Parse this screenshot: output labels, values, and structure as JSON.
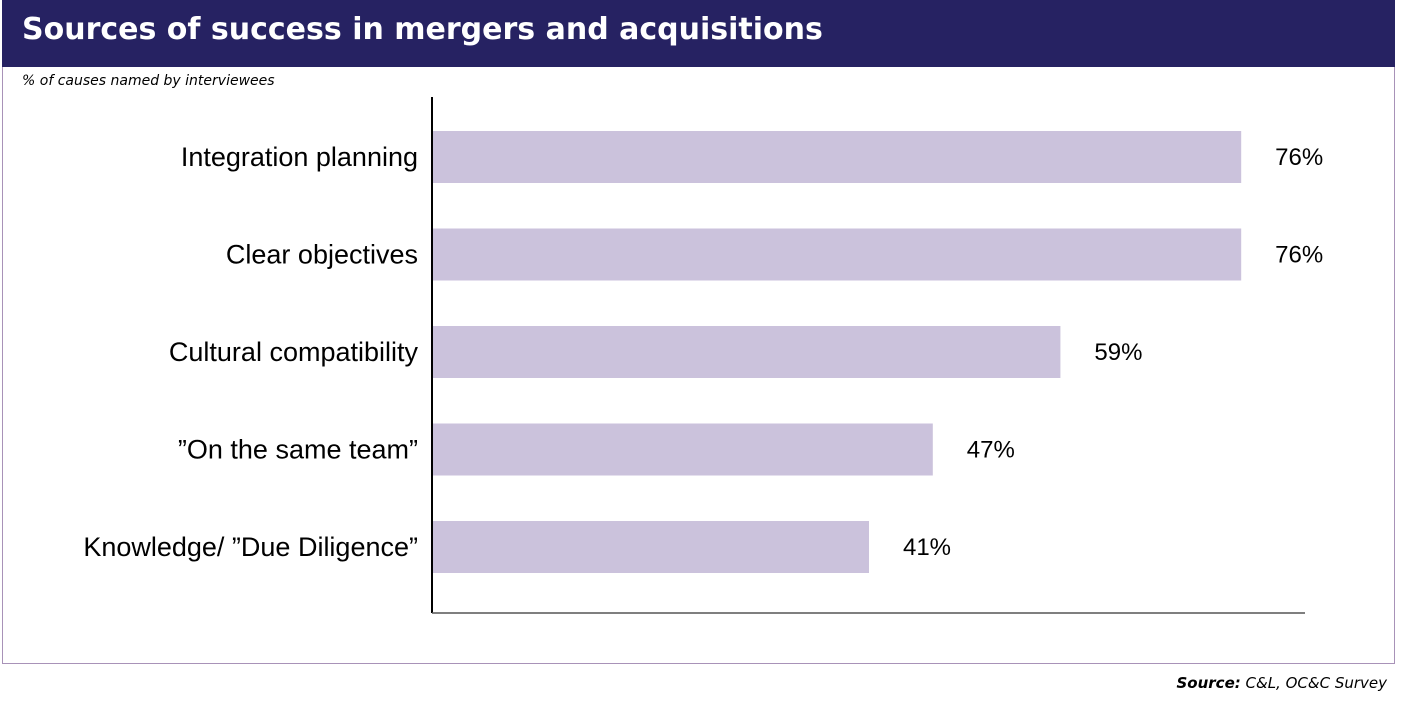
{
  "header": {
    "title": "Sources of success in mergers and acquisitions",
    "subtitle": "% of causes named by interviewees"
  },
  "footer": {
    "source_label": "Source:",
    "source_text": "C&L, OC&C Survey"
  },
  "colors": {
    "header_bg": "#262262",
    "bar": "#cbc2dc",
    "frame": "#a892b8"
  },
  "chart_data": {
    "type": "bar",
    "orientation": "horizontal",
    "categories": [
      "Integration planning",
      "Clear objectives",
      "Cultural compatibility",
      "”On the same team”",
      "Knowledge/ ”Due Diligence”"
    ],
    "values": [
      76,
      76,
      59,
      47,
      41
    ],
    "value_labels": [
      "76%",
      "76%",
      "59%",
      "47%",
      "41%"
    ],
    "title": "Sources of success in mergers and acquisitions",
    "subtitle": "% of causes named by interviewees",
    "xlim": [
      0,
      82
    ],
    "grid": false
  }
}
